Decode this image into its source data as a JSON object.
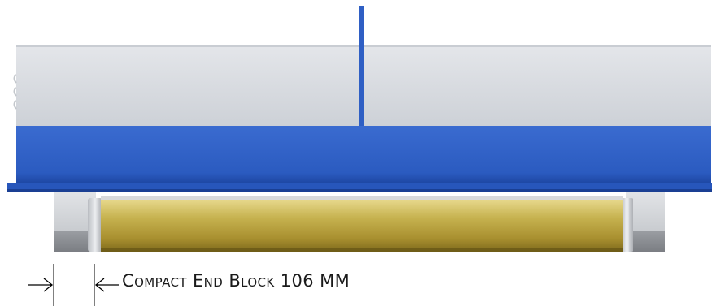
{
  "caption": "Compact End Block 106 MM",
  "colors": {
    "housing": "#d7dadf",
    "housing_edge": "#c5c9cf",
    "plate": "#2f5fc4",
    "plate_dark": "#1f48a8",
    "roller": "#c2ad4d",
    "roller_shadow": "#8f7a23",
    "end_block": "#d4d6d9",
    "end_block_dark": "#8e9196",
    "dimension_line": "#000000"
  },
  "icons": {
    "left_arrow": "right-arrow-icon",
    "right_arrow": "left-arrow-icon"
  }
}
